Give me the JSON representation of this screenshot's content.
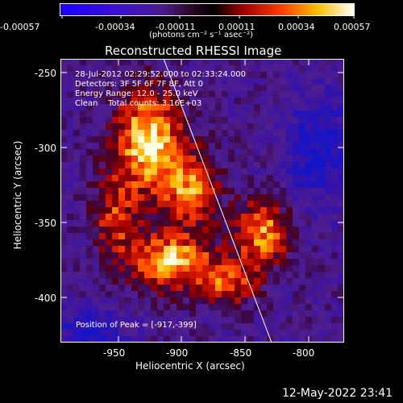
{
  "colorbar": {
    "tick_labels": [
      "-0.00057",
      "-0.00034",
      "-0.00011",
      "0.00011",
      "0.00034",
      "0.00057"
    ],
    "units": "(photons cm⁻² s⁻¹ asec⁻²)"
  },
  "title": "Reconstructed RHESSI Image",
  "annotations": {
    "line1": "28-Jul-2012 02:29:52.000 to 02:33:24.000",
    "line2": "Detectors: 3F 5F 6F 7F 8F, Att 0",
    "line3": "Energy Range: 12.0 - 25.0 keV",
    "line4": "Clean    Total counts: 3.16E+03",
    "peak": "Position of Peak = [-917,-399]"
  },
  "axes": {
    "x_label": "Heliocentric X (arcsec)",
    "y_label": "Heliocentric Y (arcsec)",
    "x_ticks": [
      "-950",
      "-900",
      "-850",
      "-800"
    ],
    "y_ticks": [
      "-250",
      "-300",
      "-350",
      "-400"
    ]
  },
  "footer": {
    "date": "12-May-2022 23:41"
  }
}
